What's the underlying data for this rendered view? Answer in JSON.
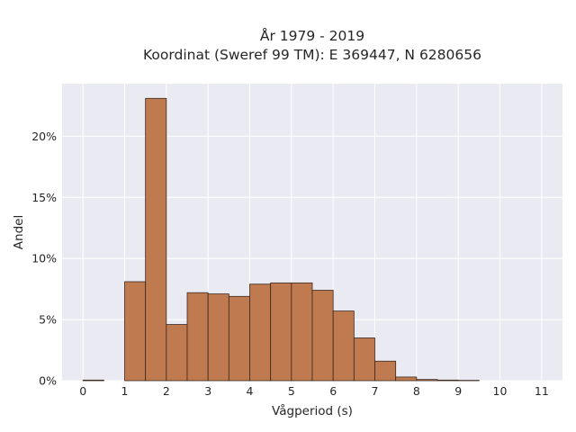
{
  "chart_data": {
    "type": "bar",
    "title": "År 1979 - 2019",
    "subtitle": "Koordinat (Sweref 99 TM): E 369447, N 6280656",
    "xlabel": "Vågperiod (s)",
    "ylabel": "Andel",
    "bin_width": 0.5,
    "bins": [
      {
        "start": 0.0,
        "value": 0.05
      },
      {
        "start": 0.5,
        "value": 0.0
      },
      {
        "start": 1.0,
        "value": 8.1
      },
      {
        "start": 1.5,
        "value": 23.1
      },
      {
        "start": 2.0,
        "value": 4.6
      },
      {
        "start": 2.5,
        "value": 7.2
      },
      {
        "start": 3.0,
        "value": 7.1
      },
      {
        "start": 3.5,
        "value": 6.9
      },
      {
        "start": 4.0,
        "value": 7.9
      },
      {
        "start": 4.5,
        "value": 8.0
      },
      {
        "start": 5.0,
        "value": 8.0
      },
      {
        "start": 5.5,
        "value": 7.4
      },
      {
        "start": 6.0,
        "value": 5.7
      },
      {
        "start": 6.5,
        "value": 3.5
      },
      {
        "start": 7.0,
        "value": 1.6
      },
      {
        "start": 7.5,
        "value": 0.3
      },
      {
        "start": 8.0,
        "value": 0.1
      },
      {
        "start": 8.5,
        "value": 0.05
      },
      {
        "start": 9.0,
        "value": 0.03
      }
    ],
    "xlim": [
      -0.5,
      11.5
    ],
    "ylim": [
      0,
      24.3
    ],
    "xticks": [
      0,
      1,
      2,
      3,
      4,
      5,
      6,
      7,
      8,
      9,
      10,
      11
    ],
    "xtick_labels": [
      "0",
      "1",
      "2",
      "3",
      "4",
      "5",
      "6",
      "7",
      "8",
      "9",
      "10",
      "11"
    ],
    "yticks": [
      0,
      5,
      10,
      15,
      20
    ],
    "ytick_labels": [
      "0%",
      "5%",
      "10%",
      "15%",
      "20%"
    ],
    "grid": true,
    "colors": {
      "bar": "#c07a50",
      "bar_edge": "#3b2a20",
      "background": "#eaeaf2",
      "grid": "#ffffff"
    }
  }
}
